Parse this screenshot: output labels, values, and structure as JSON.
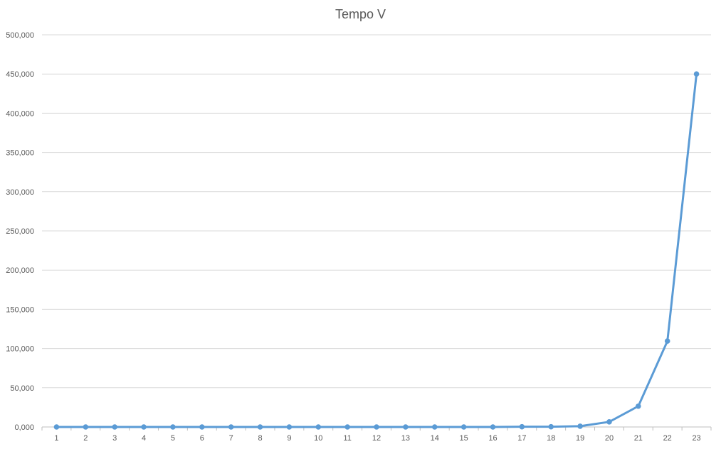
{
  "chart_data": {
    "type": "line",
    "title": "Tempo V",
    "xlabel": "",
    "ylabel": "",
    "categories": [
      "1",
      "2",
      "3",
      "4",
      "5",
      "6",
      "7",
      "8",
      "9",
      "10",
      "11",
      "12",
      "13",
      "14",
      "15",
      "16",
      "17",
      "18",
      "19",
      "20",
      "21",
      "22",
      "23"
    ],
    "series": [
      {
        "values": [
          0,
          0,
          0,
          0,
          0,
          0,
          0,
          0,
          0,
          0,
          0,
          0,
          0,
          0,
          0,
          0,
          300,
          300,
          1000,
          6500,
          26500,
          109500,
          450000
        ],
        "color": "#5b9bd5"
      }
    ],
    "ylim": [
      0,
      500000
    ],
    "yticks": [
      0,
      50000,
      100000,
      150000,
      200000,
      250000,
      300000,
      350000,
      400000,
      450000,
      500000
    ],
    "ytick_labels": [
      "0,000",
      "50,000",
      "100,000",
      "150,000",
      "200,000",
      "250,000",
      "300,000",
      "350,000",
      "400,000",
      "450,000",
      "500,000"
    ],
    "grid": true,
    "legend": "none"
  }
}
